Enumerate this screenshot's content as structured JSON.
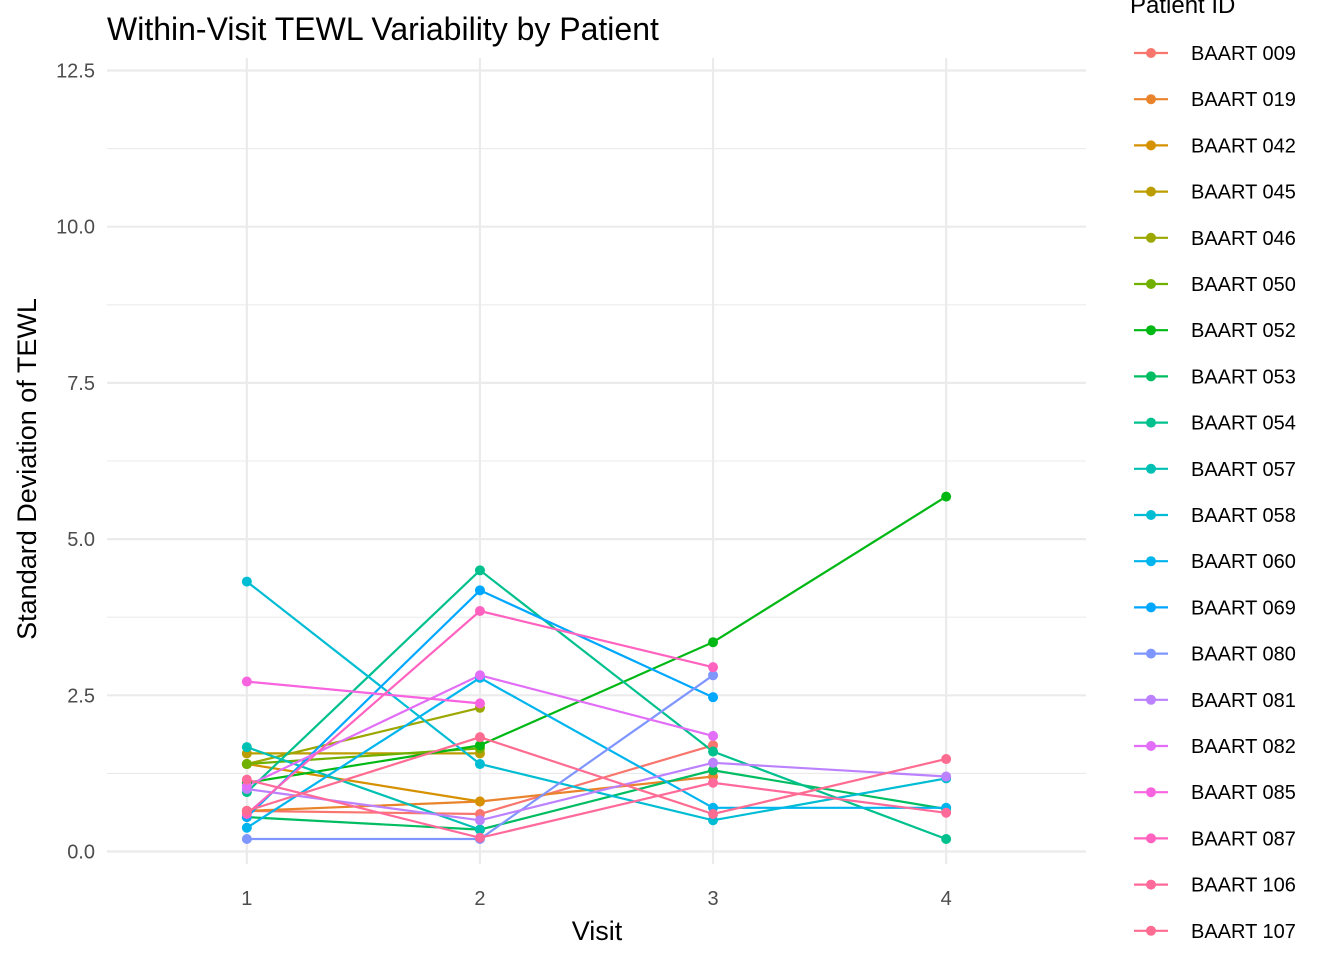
{
  "chart_data": {
    "type": "line",
    "title": "Within-Visit TEWL Variability by Patient",
    "xlabel": "Visit",
    "ylabel": "Standard Deviation of TEWL",
    "x_ticks": [
      "1",
      "2",
      "3",
      "4"
    ],
    "y_ticks": [
      "0.0",
      "2.5",
      "5.0",
      "7.5",
      "10.0",
      "12.5"
    ],
    "xlim": [
      0.4,
      4.6
    ],
    "ylim": [
      -0.2,
      12.7
    ],
    "grid": true,
    "legend_title": "Patient ID",
    "legend_position": "right",
    "series": [
      {
        "name": "BAART 009",
        "color": "#F8766D",
        "points": [
          [
            1,
            0.65
          ],
          [
            2,
            0.6
          ],
          [
            3,
            1.7
          ]
        ]
      },
      {
        "name": "BAART 019",
        "color": "#E9842C",
        "points": [
          [
            1,
            0.65
          ],
          [
            2,
            0.8
          ],
          [
            3,
            1.2
          ]
        ]
      },
      {
        "name": "BAART 042",
        "color": "#D69100",
        "points": [
          [
            1,
            1.4
          ],
          [
            2,
            0.8
          ]
        ]
      },
      {
        "name": "BAART 045",
        "color": "#BC9D00",
        "points": [
          [
            1,
            1.57
          ],
          [
            2,
            1.57
          ]
        ]
      },
      {
        "name": "BAART 046",
        "color": "#9CA700",
        "points": [
          [
            1,
            1.4
          ],
          [
            2,
            2.3
          ]
        ]
      },
      {
        "name": "BAART 050",
        "color": "#6FB000",
        "points": [
          [
            1,
            1.4
          ],
          [
            2,
            1.65
          ]
        ]
      },
      {
        "name": "BAART 052",
        "color": "#00B813",
        "points": [
          [
            1,
            1.1
          ],
          [
            2,
            1.7
          ],
          [
            3,
            3.35
          ],
          [
            4,
            5.68
          ]
        ]
      },
      {
        "name": "BAART 053",
        "color": "#00BD61",
        "points": [
          [
            1,
            0.55
          ],
          [
            2,
            0.35
          ],
          [
            3,
            1.3
          ],
          [
            4,
            0.68
          ]
        ]
      },
      {
        "name": "BAART 054",
        "color": "#00C08E",
        "points": [
          [
            1,
            0.95
          ],
          [
            2,
            4.5
          ],
          [
            3,
            1.6
          ],
          [
            4,
            0.2
          ]
        ]
      },
      {
        "name": "BAART 057",
        "color": "#00C0B4",
        "points": [
          [
            1,
            1.67
          ],
          [
            2,
            0.35
          ]
        ]
      },
      {
        "name": "BAART 058",
        "color": "#00BDD4",
        "points": [
          [
            1,
            4.32
          ],
          [
            2,
            1.4
          ],
          [
            3,
            0.5
          ],
          [
            4,
            1.17
          ]
        ]
      },
      {
        "name": "BAART 060",
        "color": "#00B5EE",
        "points": [
          [
            1,
            0.38
          ],
          [
            2,
            2.78
          ],
          [
            3,
            0.7
          ],
          [
            4,
            0.7
          ]
        ]
      },
      {
        "name": "BAART 069",
        "color": "#00A7FF",
        "points": [
          [
            1,
            0.55
          ],
          [
            2,
            4.18
          ],
          [
            3,
            2.47
          ]
        ]
      },
      {
        "name": "BAART 080",
        "color": "#7F96FF",
        "points": [
          [
            1,
            0.2
          ],
          [
            2,
            0.2
          ],
          [
            3,
            2.82
          ]
        ]
      },
      {
        "name": "BAART 081",
        "color": "#BC81FF",
        "points": [
          [
            1,
            1.0
          ],
          [
            2,
            0.5
          ],
          [
            3,
            1.42
          ],
          [
            4,
            1.2
          ]
        ]
      },
      {
        "name": "BAART 082",
        "color": "#E26EF7",
        "points": [
          [
            1,
            1.05
          ],
          [
            2,
            2.82
          ],
          [
            3,
            1.85
          ]
        ]
      },
      {
        "name": "BAART 085",
        "color": "#F863DF",
        "points": [
          [
            1,
            2.72
          ],
          [
            2,
            2.37
          ]
        ]
      },
      {
        "name": "BAART 087",
        "color": "#FF62BF",
        "points": [
          [
            1,
            0.6
          ],
          [
            2,
            3.85
          ],
          [
            3,
            2.95
          ]
        ]
      },
      {
        "name": "BAART 106",
        "color": "#FF6A9A",
        "points": [
          [
            1,
            1.15
          ],
          [
            2,
            0.22
          ],
          [
            3,
            1.1
          ],
          [
            4,
            0.62
          ]
        ]
      },
      {
        "name": "BAART 107",
        "color": "#FF6C91",
        "points": [
          [
            1,
            0.65
          ],
          [
            2,
            1.83
          ],
          [
            3,
            0.6
          ],
          [
            4,
            1.48
          ]
        ]
      }
    ]
  }
}
